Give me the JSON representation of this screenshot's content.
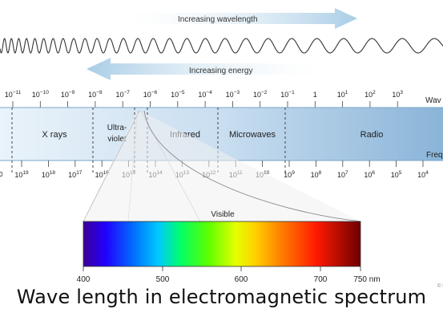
{
  "labels": {
    "increasing_wavelength": "Increasing wavelength",
    "increasing_energy": "Increasing energy",
    "wavelength_axis": "Wav",
    "frequency_axis": "Freq",
    "visible": "Visible",
    "credit": "© S"
  },
  "wavelength_ticks": [
    {
      "base": "10",
      "exp": "−11"
    },
    {
      "base": "10",
      "exp": "−10"
    },
    {
      "base": "10",
      "exp": "−9"
    },
    {
      "base": "10",
      "exp": "−8"
    },
    {
      "base": "10",
      "exp": "−7"
    },
    {
      "base": "10",
      "exp": "−6"
    },
    {
      "base": "10",
      "exp": "−5"
    },
    {
      "base": "10",
      "exp": "−4"
    },
    {
      "base": "10",
      "exp": "−3"
    },
    {
      "base": "10",
      "exp": "−2"
    },
    {
      "base": "10",
      "exp": "−1"
    },
    {
      "base": "1",
      "exp": ""
    },
    {
      "base": "10",
      "exp": "1"
    },
    {
      "base": "10",
      "exp": "2"
    },
    {
      "base": "10",
      "exp": "3"
    }
  ],
  "frequency_ticks": [
    {
      "base": "10",
      "exp": "19"
    },
    {
      "base": "10",
      "exp": "18"
    },
    {
      "base": "10",
      "exp": "17"
    },
    {
      "base": "10",
      "exp": "16"
    },
    {
      "base": "10",
      "exp": "15"
    },
    {
      "base": "10",
      "exp": "14"
    },
    {
      "base": "10",
      "exp": "13"
    },
    {
      "base": "10",
      "exp": "12"
    },
    {
      "base": "10",
      "exp": "11"
    },
    {
      "base": "10",
      "exp": "10"
    },
    {
      "base": "10",
      "exp": "9"
    },
    {
      "base": "10",
      "exp": "8"
    },
    {
      "base": "10",
      "exp": "7"
    },
    {
      "base": "10",
      "exp": "6"
    },
    {
      "base": "10",
      "exp": "5"
    },
    {
      "base": "10",
      "exp": "4"
    }
  ],
  "regions": {
    "xrays": "X rays",
    "ultraviolet_line1": "Ultra-",
    "ultraviolet_line2": "violet",
    "infrared": "Infrared",
    "microwaves": "Microwaves",
    "radio": "Radio"
  },
  "visible_ticks": [
    "400",
    "500",
    "600",
    "700",
    "750 nm"
  ],
  "caption": "Wave length in electromagnetic spectrum",
  "colors": {
    "band_light": "#e2eef7",
    "band_dark": "#8fb8da",
    "arrow": "#a9cde6",
    "wave": "#333333"
  }
}
